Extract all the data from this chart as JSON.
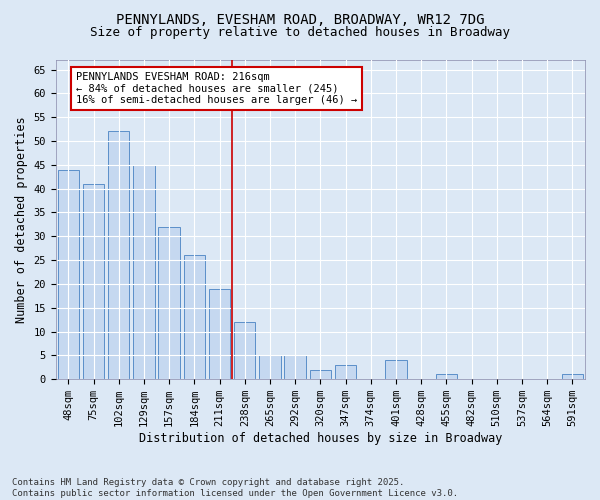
{
  "title1": "PENNYLANDS, EVESHAM ROAD, BROADWAY, WR12 7DG",
  "title2": "Size of property relative to detached houses in Broadway",
  "xlabel": "Distribution of detached houses by size in Broadway",
  "ylabel": "Number of detached properties",
  "categories": [
    "48sqm",
    "75sqm",
    "102sqm",
    "129sqm",
    "157sqm",
    "184sqm",
    "211sqm",
    "238sqm",
    "265sqm",
    "292sqm",
    "320sqm",
    "347sqm",
    "374sqm",
    "401sqm",
    "428sqm",
    "455sqm",
    "482sqm",
    "510sqm",
    "537sqm",
    "564sqm",
    "591sqm"
  ],
  "values": [
    44,
    41,
    52,
    45,
    32,
    26,
    19,
    12,
    5,
    5,
    2,
    3,
    0,
    4,
    0,
    1,
    0,
    0,
    0,
    0,
    1
  ],
  "bar_color": "#c5d8f0",
  "bar_edge_color": "#5b8fc9",
  "background_color": "#dce8f5",
  "grid_color": "#ffffff",
  "vline_x_index": 6.5,
  "vline_color": "#cc0000",
  "annotation_text": "PENNYLANDS EVESHAM ROAD: 216sqm\n← 84% of detached houses are smaller (245)\n16% of semi-detached houses are larger (46) →",
  "annotation_box_color": "#ffffff",
  "annotation_box_edge": "#cc0000",
  "ylim": [
    0,
    67
  ],
  "yticks": [
    0,
    5,
    10,
    15,
    20,
    25,
    30,
    35,
    40,
    45,
    50,
    55,
    60,
    65
  ],
  "footer": "Contains HM Land Registry data © Crown copyright and database right 2025.\nContains public sector information licensed under the Open Government Licence v3.0.",
  "title_fontsize": 10,
  "subtitle_fontsize": 9,
  "axis_label_fontsize": 8.5,
  "tick_fontsize": 7.5,
  "annotation_fontsize": 7.5,
  "footer_fontsize": 6.5
}
